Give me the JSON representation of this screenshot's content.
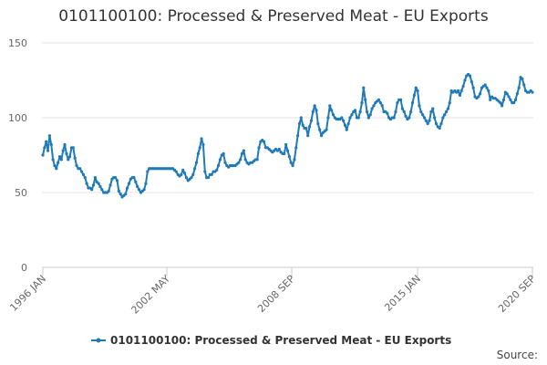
{
  "chart_data": {
    "type": "line",
    "title": "0101100100: Processed & Preserved Meat - EU Exports",
    "xlabel": "",
    "ylabel": "",
    "x_start": "1996 JAN",
    "x_end": "2020 SEP",
    "x_tick_labels": [
      "1996 JAN",
      "2002 MAY",
      "2008 SEP",
      "2015 JAN",
      "2020 SEP"
    ],
    "y_ticks": [
      0,
      50,
      100,
      150
    ],
    "ylim": [
      0,
      150
    ],
    "grid": true,
    "legend_position": "bottom",
    "series": [
      {
        "name": "0101100100: Processed & Preserved Meat - EU Exports",
        "color": "#1f7ab7",
        "values": [
          75,
          80,
          84,
          78,
          88,
          82,
          72,
          68,
          66,
          70,
          74,
          72,
          78,
          82,
          76,
          72,
          74,
          80,
          80,
          73,
          68,
          66,
          66,
          64,
          62,
          60,
          56,
          53,
          53,
          52,
          55,
          60,
          57,
          56,
          54,
          52,
          50,
          50,
          50,
          51,
          55,
          59,
          60,
          60,
          58,
          51,
          49,
          47,
          48,
          49,
          53,
          56,
          59,
          60,
          60,
          57,
          54,
          52,
          50,
          51,
          52,
          56,
          64,
          66,
          66,
          66,
          66,
          66,
          66,
          66,
          66,
          66,
          66,
          66,
          66,
          66,
          66,
          66,
          65,
          64,
          62,
          61,
          62,
          65,
          63,
          60,
          58,
          59,
          60,
          62,
          66,
          70,
          76,
          80,
          86,
          82,
          64,
          60,
          60,
          62,
          62,
          64,
          64,
          65,
          68,
          72,
          75,
          76,
          70,
          68,
          67,
          68,
          68,
          68,
          68,
          69,
          70,
          72,
          76,
          78,
          72,
          70,
          69,
          70,
          70,
          71,
          72,
          72,
          80,
          84,
          85,
          84,
          80,
          80,
          79,
          78,
          77,
          78,
          79,
          78,
          79,
          77,
          76,
          76,
          82,
          78,
          74,
          70,
          68,
          72,
          80,
          88,
          96,
          100,
          95,
          93,
          93,
          88,
          94,
          98,
          104,
          108,
          105,
          96,
          92,
          88,
          90,
          91,
          92,
          100,
          108,
          105,
          102,
          100,
          99,
          99,
          99,
          100,
          98,
          95,
          92,
          96,
          100,
          102,
          104,
          105,
          100,
          100,
          104,
          110,
          120,
          112,
          104,
          100,
          102,
          106,
          108,
          110,
          111,
          112,
          110,
          108,
          104,
          104,
          103,
          100,
          99,
          100,
          100,
          104,
          110,
          112,
          112,
          106,
          104,
          101,
          99,
          100,
          104,
          110,
          115,
          120,
          118,
          108,
          104,
          102,
          100,
          98,
          96,
          98,
          104,
          106,
          100,
          96,
          94,
          93,
          96,
          100,
          102,
          104,
          106,
          110,
          118,
          117,
          118,
          117,
          118,
          115,
          118,
          121,
          125,
          128,
          129,
          128,
          124,
          120,
          114,
          113,
          114,
          116,
          120,
          121,
          122,
          120,
          118,
          112,
          114,
          113,
          113,
          112,
          111,
          110,
          108,
          112,
          117,
          116,
          114,
          112,
          110,
          110,
          112,
          116,
          120,
          127,
          126,
          122,
          118,
          117,
          117,
          118,
          117
        ]
      }
    ],
    "credit": "Source:"
  }
}
